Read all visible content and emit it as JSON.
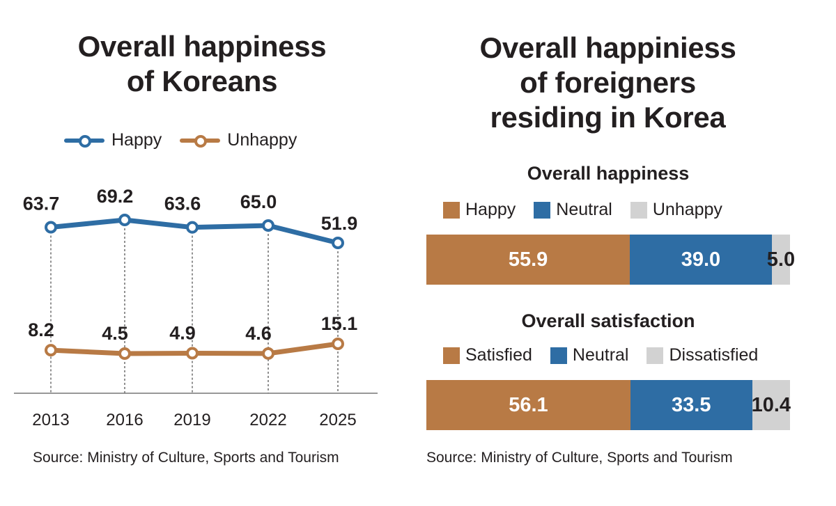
{
  "colors": {
    "happy": "#2e6da4",
    "unhappy": "#b87a45",
    "neutral": "#2e6da4",
    "negative": "#d2d2d2",
    "text": "#231f20"
  },
  "left": {
    "title_lines": [
      "Overall happiness",
      "of Koreans"
    ],
    "legend": [
      "Happy",
      "Unhappy"
    ],
    "source": "Source: Ministry of Culture, Sports and Tourism"
  },
  "right": {
    "title_lines": [
      "Overall happiniess",
      "of foreigners",
      "residing in Korea"
    ],
    "source": "Source: Ministry of Culture, Sports and Tourism"
  },
  "chart_data": [
    {
      "type": "line",
      "title": "Overall happiness of Koreans",
      "x": [
        "2013",
        "2016",
        "2019",
        "2022",
        "2025"
      ],
      "series": [
        {
          "name": "Happy",
          "values": [
            63.7,
            69.2,
            63.6,
            65.0,
            51.9
          ],
          "labels": [
            "63.7",
            "69.2",
            "63.6",
            "65.0",
            "51.9"
          ]
        },
        {
          "name": "Unhappy",
          "values": [
            8.2,
            4.5,
            4.9,
            4.6,
            15.1
          ],
          "labels": [
            "8.2",
            "4.5",
            "4.9",
            "4.6",
            "15.1"
          ]
        }
      ],
      "xlabel": "",
      "ylabel": "",
      "grid": "vertical dashed guides",
      "legend_position": "top"
    },
    {
      "type": "bar",
      "subtype": "stacked-horizontal",
      "title": "Overall happiness",
      "categories": [
        "Happy",
        "Neutral",
        "Unhappy"
      ],
      "values": [
        55.9,
        39.0,
        5.0
      ],
      "labels": [
        "55.9",
        "39.0",
        "5.0"
      ],
      "legend_position": "top"
    },
    {
      "type": "bar",
      "subtype": "stacked-horizontal",
      "title": "Overall satisfaction",
      "categories": [
        "Satisfied",
        "Neutral",
        "Dissatisfied"
      ],
      "values": [
        56.1,
        33.5,
        10.4
      ],
      "labels": [
        "56.1",
        "33.5",
        "10.4"
      ],
      "legend_position": "top"
    }
  ]
}
